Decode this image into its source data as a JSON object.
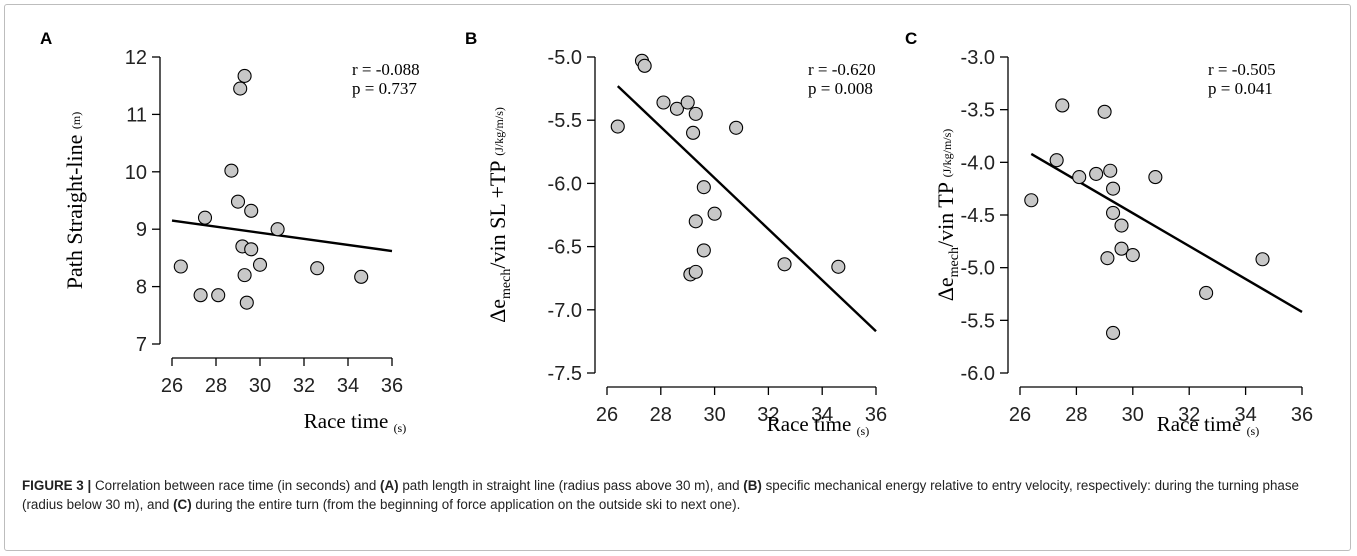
{
  "chart_data": [
    {
      "panel": "A",
      "type": "scatter",
      "xlabel": "Race time",
      "xlabel_sub": "(s)",
      "ylabel": "Path  Straight-line",
      "ylabel_sub": "(m)",
      "xlim": [
        26,
        36
      ],
      "ylim": [
        7,
        12
      ],
      "xticks": [
        26,
        28,
        30,
        32,
        34,
        36
      ],
      "yticks": [
        7,
        8,
        9,
        10,
        11,
        12
      ],
      "annotation": [
        "r = -0.088",
        "p = 0.737"
      ],
      "points": [
        {
          "x": 26.4,
          "y": 8.35
        },
        {
          "x": 27.3,
          "y": 7.85
        },
        {
          "x": 27.5,
          "y": 9.2
        },
        {
          "x": 28.1,
          "y": 7.85
        },
        {
          "x": 28.7,
          "y": 10.02
        },
        {
          "x": 29.0,
          "y": 9.48
        },
        {
          "x": 29.1,
          "y": 11.45
        },
        {
          "x": 29.2,
          "y": 8.7
        },
        {
          "x": 29.3,
          "y": 11.67
        },
        {
          "x": 29.3,
          "y": 8.2
        },
        {
          "x": 29.4,
          "y": 7.72
        },
        {
          "x": 29.6,
          "y": 9.32
        },
        {
          "x": 29.6,
          "y": 8.65
        },
        {
          "x": 30.0,
          "y": 8.38
        },
        {
          "x": 30.8,
          "y": 9.0
        },
        {
          "x": 32.6,
          "y": 8.32
        },
        {
          "x": 34.6,
          "y": 8.17
        }
      ],
      "fit_line": {
        "x": [
          26,
          36
        ],
        "y": [
          9.15,
          8.62
        ]
      }
    },
    {
      "panel": "B",
      "type": "scatter",
      "xlabel": "Race time",
      "xlabel_sub": "(s)",
      "ylabel_parts": [
        "Δe",
        "mech",
        "/vin SL +TP",
        "(J/kg/m/s)"
      ],
      "xlim": [
        26,
        36
      ],
      "ylim": [
        -7.5,
        -5.0
      ],
      "xticks": [
        26,
        28,
        30,
        32,
        34,
        36
      ],
      "yticks": [
        -7.5,
        -7.0,
        -6.5,
        -6.0,
        -5.5,
        -5.0
      ],
      "ytick_labels": [
        "-7.5",
        "-7.0",
        "-6.5",
        "-6.0",
        "-5.5",
        "-5.0"
      ],
      "annotation": [
        "r = -0.620",
        "p = 0.008"
      ],
      "points": [
        {
          "x": 26.4,
          "y": -5.55
        },
        {
          "x": 27.3,
          "y": -5.03
        },
        {
          "x": 27.4,
          "y": -5.07
        },
        {
          "x": 28.1,
          "y": -5.36
        },
        {
          "x": 28.6,
          "y": -5.41
        },
        {
          "x": 29.0,
          "y": -5.36
        },
        {
          "x": 29.2,
          "y": -5.6
        },
        {
          "x": 29.3,
          "y": -5.45
        },
        {
          "x": 29.3,
          "y": -6.3
        },
        {
          "x": 29.6,
          "y": -6.03
        },
        {
          "x": 29.6,
          "y": -6.53
        },
        {
          "x": 29.1,
          "y": -6.72
        },
        {
          "x": 29.3,
          "y": -6.7
        },
        {
          "x": 30.0,
          "y": -6.24
        },
        {
          "x": 30.8,
          "y": -5.56
        },
        {
          "x": 32.6,
          "y": -6.64
        },
        {
          "x": 34.6,
          "y": -6.66
        }
      ],
      "fit_line": {
        "x": [
          26.4,
          36
        ],
        "y": [
          -5.23,
          -7.17
        ]
      }
    },
    {
      "panel": "C",
      "type": "scatter",
      "xlabel": "Race time",
      "xlabel_sub": "(s)",
      "ylabel_parts": [
        "Δe",
        "mech",
        "/vin TP",
        "(J/kg/m/s)"
      ],
      "xlim": [
        26,
        36
      ],
      "ylim": [
        -6.0,
        -3.0
      ],
      "xticks": [
        26,
        28,
        30,
        32,
        34,
        36
      ],
      "yticks": [
        -6.0,
        -5.5,
        -5.0,
        -4.5,
        -4.0,
        -3.5,
        -3.0
      ],
      "ytick_labels": [
        "-6.0",
        "-5.5",
        "-5.0",
        "-4.5",
        "-4.0",
        "-3.5",
        "-3.0"
      ],
      "annotation": [
        "r = -0.505",
        "p = 0.041"
      ],
      "points": [
        {
          "x": 26.4,
          "y": -4.36
        },
        {
          "x": 27.3,
          "y": -3.98
        },
        {
          "x": 27.5,
          "y": -3.46
        },
        {
          "x": 28.1,
          "y": -4.14
        },
        {
          "x": 28.7,
          "y": -4.11
        },
        {
          "x": 29.0,
          "y": -3.52
        },
        {
          "x": 29.1,
          "y": -4.91
        },
        {
          "x": 29.2,
          "y": -4.08
        },
        {
          "x": 29.3,
          "y": -4.48
        },
        {
          "x": 29.3,
          "y": -4.25
        },
        {
          "x": 29.3,
          "y": -5.62
        },
        {
          "x": 29.6,
          "y": -4.6
        },
        {
          "x": 29.6,
          "y": -4.82
        },
        {
          "x": 30.0,
          "y": -4.88
        },
        {
          "x": 30.8,
          "y": -4.14
        },
        {
          "x": 32.6,
          "y": -5.24
        },
        {
          "x": 34.6,
          "y": -4.92
        }
      ],
      "fit_line": {
        "x": [
          26.4,
          36
        ],
        "y": [
          -3.92,
          -5.42
        ]
      }
    }
  ],
  "caption": {
    "label": "FIGURE 3 |",
    "segments": [
      {
        "text": " Correlation between race time (in seconds) and ",
        "bold": false
      },
      {
        "text": "(A)",
        "bold": true
      },
      {
        "text": " path length in straight line (radius pass above 30 m), and ",
        "bold": false
      },
      {
        "text": "(B)",
        "bold": true
      },
      {
        "text": " specific mechanical energy relative to entry velocity, respectively: during the turning phase (radius below 30 m), and ",
        "bold": false
      },
      {
        "text": "(C)",
        "bold": true
      },
      {
        "text": " during the entire turn (from the beginning of force application on the outside ski to next one).",
        "bold": false
      }
    ]
  }
}
